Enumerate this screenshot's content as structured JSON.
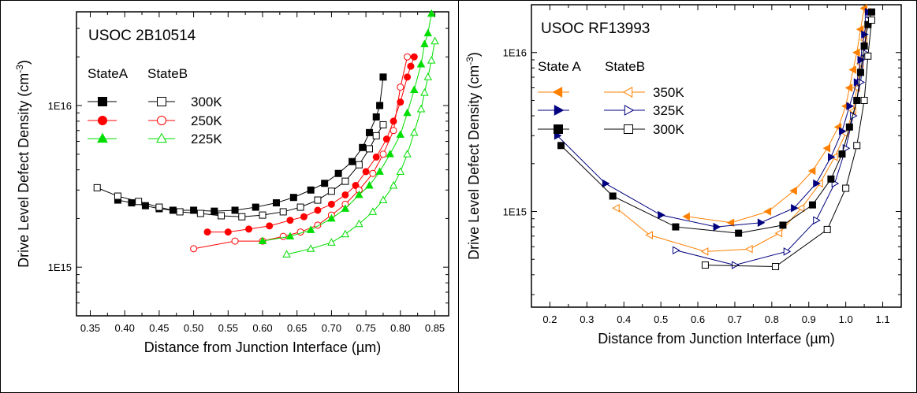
{
  "chart_data": [
    {
      "type": "scatter",
      "title": "USOC 2B10514",
      "xlabel": "Distance from Junction Interface (µm)",
      "ylabel": "Drive Level Defect Density (cm-3)",
      "ylabel_main": "Drive Level Defect Density (cm",
      "ylabel_sup": "-3",
      "ylabel_close": ")",
      "xlim": [
        0.33,
        0.87
      ],
      "ylim": [
        500000000000000,
        38000000000000000
      ],
      "yscale": "log",
      "xticks": [
        "0.35",
        "0.40",
        "0.45",
        "0.50",
        "0.55",
        "0.60",
        "0.65",
        "0.70",
        "0.75",
        "0.80",
        "0.85"
      ],
      "yticks": [
        {
          "value": 1000000000000000,
          "label": "1E15"
        },
        {
          "value": 10000000000000000,
          "label": "1E16"
        }
      ],
      "legend_headers": [
        "StateA",
        "StateB"
      ],
      "legend_rows": [
        {
          "label": "300K",
          "color": "#000000",
          "marker": "square"
        },
        {
          "label": "250K",
          "color": "#ff0000",
          "marker": "circle"
        },
        {
          "label": "225K",
          "color": "#00dd00",
          "marker": "triangle-up"
        }
      ],
      "series": [
        {
          "name": "StateA 300K",
          "color": "#000000",
          "marker": "square",
          "filled": true,
          "x": [
            0.39,
            0.41,
            0.43,
            0.45,
            0.47,
            0.5,
            0.53,
            0.56,
            0.59,
            0.62,
            0.645,
            0.67,
            0.69,
            0.71,
            0.73,
            0.745,
            0.755,
            0.765,
            0.77,
            0.775
          ],
          "y": [
            2600000000000000.0,
            2500000000000000.0,
            2400000000000000.0,
            2300000000000000.0,
            2250000000000000.0,
            2250000000000000.0,
            2220000000000000.0,
            2250000000000000.0,
            2350000000000000.0,
            2500000000000000.0,
            2700000000000000.0,
            3000000000000000.0,
            3300000000000000.0,
            3800000000000000.0,
            4500000000000000.0,
            5500000000000000.0,
            6800000000000000.0,
            8500000000000000.0,
            1e+16,
            1.5e+16
          ]
        },
        {
          "name": "StateB 300K",
          "color": "#000000",
          "marker": "square",
          "filled": false,
          "x": [
            0.36,
            0.39,
            0.42,
            0.45,
            0.48,
            0.51,
            0.54,
            0.57,
            0.6,
            0.63,
            0.655,
            0.68,
            0.7,
            0.72,
            0.74,
            0.755,
            0.765,
            0.775
          ],
          "y": [
            3100000000000000.0,
            2750000000000000.0,
            2550000000000000.0,
            2350000000000000.0,
            2200000000000000.0,
            2150000000000000.0,
            2080000000000000.0,
            2050000000000000.0,
            2100000000000000.0,
            2200000000000000.0,
            2350000000000000.0,
            2600000000000000.0,
            2950000000000000.0,
            3400000000000000.0,
            4300000000000000.0,
            5400000000000000.0,
            6500000000000000.0,
            7600000000000000.0
          ]
        },
        {
          "name": "StateA 250K",
          "color": "#ff0000",
          "marker": "circle",
          "filled": true,
          "x": [
            0.52,
            0.55,
            0.58,
            0.61,
            0.64,
            0.66,
            0.68,
            0.7,
            0.72,
            0.735,
            0.75,
            0.765,
            0.78,
            0.79,
            0.8,
            0.81,
            0.815,
            0.82
          ],
          "y": [
            1650000000000000.0,
            1650000000000000.0,
            1720000000000000.0,
            1800000000000000.0,
            1950000000000000.0,
            2050000000000000.0,
            2250000000000000.0,
            2450000000000000.0,
            2800000000000000.0,
            3200000000000000.0,
            3900000000000000.0,
            4800000000000000.0,
            6200000000000000.0,
            8000000000000000.0,
            1.05e+16,
            1.5e+16,
            1.75e+16,
            2e+16
          ]
        },
        {
          "name": "StateB 250K",
          "color": "#ff0000",
          "marker": "circle",
          "filled": false,
          "x": [
            0.5,
            0.56,
            0.6,
            0.63,
            0.655,
            0.68,
            0.7,
            0.72,
            0.74,
            0.76,
            0.775,
            0.79,
            0.8,
            0.81
          ],
          "y": [
            1300000000000000.0,
            1450000000000000.0,
            1450000000000000.0,
            1550000000000000.0,
            1650000000000000.0,
            1820000000000000.0,
            2100000000000000.0,
            2450000000000000.0,
            3000000000000000.0,
            3800000000000000.0,
            5000000000000000.0,
            7000000000000000.0,
            1.3e+16,
            2e+16
          ]
        },
        {
          "name": "StateA 225K",
          "color": "#00dd00",
          "marker": "triangle-up",
          "filled": true,
          "x": [
            0.6,
            0.64,
            0.67,
            0.7,
            0.72,
            0.74,
            0.755,
            0.77,
            0.785,
            0.8,
            0.81,
            0.82,
            0.83,
            0.835,
            0.84,
            0.845
          ],
          "y": [
            1450000000000000.0,
            1550000000000000.0,
            1700000000000000.0,
            2000000000000000.0,
            2300000000000000.0,
            2800000000000000.0,
            3200000000000000.0,
            3900000000000000.0,
            5000000000000000.0,
            6600000000000000.0,
            9000000000000000.0,
            1.25e+16,
            1.8e+16,
            2.4e+16,
            2.8e+16,
            3.7e+16
          ]
        },
        {
          "name": "StateB 225K",
          "color": "#00dd00",
          "marker": "triangle-up",
          "filled": false,
          "x": [
            0.635,
            0.67,
            0.7,
            0.72,
            0.74,
            0.76,
            0.775,
            0.79,
            0.8,
            0.81,
            0.82,
            0.83,
            0.835,
            0.84,
            0.845,
            0.85
          ],
          "y": [
            1200000000000000.0,
            1300000000000000.0,
            1420000000000000.0,
            1600000000000000.0,
            1850000000000000.0,
            2200000000000000.0,
            2600000000000000.0,
            3200000000000000.0,
            3900000000000000.0,
            5000000000000000.0,
            6800000000000000.0,
            9500000000000000.0,
            1.2e+16,
            1.5e+16,
            1.9e+16,
            2.5e+16
          ]
        }
      ]
    },
    {
      "type": "scatter",
      "title": "USOC RF13993",
      "xlabel": "Distance from Junction Interface (µm)",
      "ylabel": "Drive Level Defect Density (cm-3)",
      "ylabel_main": "Drive Level Defect Density (cm",
      "ylabel_sup": "-3",
      "ylabel_close": ")",
      "xlim": [
        0.15,
        1.15
      ],
      "ylim": [
        250000000000000,
        20000000000000000
      ],
      "yscale": "log",
      "xticks": [
        "0.2",
        "0.3",
        "0.4",
        "0.5",
        "0.6",
        "0.7",
        "0.8",
        "0.9",
        "1.0",
        "1.1"
      ],
      "yticks": [
        {
          "value": 1000000000000000,
          "label": "1E15"
        },
        {
          "value": 10000000000000000,
          "label": "1E16"
        }
      ],
      "legend_headers": [
        "State A",
        "StateB"
      ],
      "legend_rows": [
        {
          "label": "350K",
          "color": "#ff8000",
          "marker": "triangle-left"
        },
        {
          "label": "325K",
          "color": "#000080",
          "marker": "triangle-right"
        },
        {
          "label": "300K",
          "color": "#000000",
          "marker": "square"
        }
      ],
      "series": [
        {
          "name": "State A 350K",
          "color": "#ff8000",
          "marker": "triangle-left",
          "filled": true,
          "x": [
            0.57,
            0.69,
            0.79,
            0.86,
            0.91,
            0.95,
            0.98,
            1.0,
            1.01,
            1.02,
            1.03,
            1.04,
            1.05
          ],
          "y": [
            930000000000000.0,
            850000000000000.0,
            1000000000000000.0,
            1350000000000000.0,
            1800000000000000.0,
            2500000000000000.0,
            3400000000000000.0,
            4600000000000000.0,
            6000000000000000.0,
            7800000000000000.0,
            1e+16,
            1.4e+16,
            1.9e+16
          ]
        },
        {
          "name": "StateB 350K",
          "color": "#ff8000",
          "marker": "triangle-left",
          "filled": false,
          "x": [
            0.38,
            0.47,
            0.62,
            0.74,
            0.82,
            0.88,
            0.93,
            0.97,
            1.0,
            1.02,
            1.03,
            1.04,
            1.05,
            1.06
          ],
          "y": [
            1050000000000000.0,
            710000000000000.0,
            560000000000000.0,
            580000000000000.0,
            730000000000000.0,
            1050000000000000.0,
            1500000000000000.0,
            2200000000000000.0,
            3100000000000000.0,
            4300000000000000.0,
            6000000000000000.0,
            8500000000000000.0,
            1.2e+16,
            1.8e+16
          ]
        },
        {
          "name": "State A 325K",
          "color": "#000080",
          "marker": "triangle-right",
          "filled": true,
          "x": [
            0.22,
            0.35,
            0.5,
            0.65,
            0.77,
            0.86,
            0.92,
            0.96,
            0.99,
            1.01,
            1.03,
            1.04,
            1.05,
            1.06
          ],
          "y": [
            3000000000000000.0,
            1500000000000000.0,
            950000000000000.0,
            800000000000000.0,
            850000000000000.0,
            1050000000000000.0,
            1500000000000000.0,
            2200000000000000.0,
            3200000000000000.0,
            4600000000000000.0,
            6500000000000000.0,
            9000000000000000.0,
            1.3e+16,
            1.8e+16
          ]
        },
        {
          "name": "StateB 325K",
          "color": "#000080",
          "marker": "triangle-right",
          "filled": false,
          "x": [
            0.54,
            0.7,
            0.84,
            0.92,
            0.97,
            1.0,
            1.02,
            1.04,
            1.05,
            1.06
          ],
          "y": [
            570000000000000.0,
            460000000000000.0,
            560000000000000.0,
            880000000000000.0,
            1500000000000000.0,
            2500000000000000.0,
            4000000000000000.0,
            6500000000000000.0,
            1e+16,
            1.6e+16
          ]
        },
        {
          "name": "State A 300K",
          "color": "#000000",
          "marker": "square",
          "filled": true,
          "x": [
            0.23,
            0.37,
            0.54,
            0.71,
            0.83,
            0.91,
            0.96,
            0.99,
            1.01,
            1.03,
            1.04,
            1.05,
            1.06,
            1.07
          ],
          "y": [
            2600000000000000.0,
            1250000000000000.0,
            800000000000000.0,
            730000000000000.0,
            820000000000000.0,
            1100000000000000.0,
            1600000000000000.0,
            2300000000000000.0,
            3400000000000000.0,
            5000000000000000.0,
            7500000000000000.0,
            1.1e+16,
            1.5e+16,
            1.8e+16
          ]
        },
        {
          "name": "StateB 300K",
          "color": "#000000",
          "marker": "square",
          "filled": false,
          "x": [
            0.62,
            0.81,
            0.95,
            1.0,
            1.03,
            1.05,
            1.06,
            1.07
          ],
          "y": [
            460000000000000.0,
            450000000000000.0,
            770000000000000.0,
            1400000000000000.0,
            2600000000000000.0,
            5000000000000000.0,
            9500000000000000.0,
            1.6e+16
          ]
        }
      ]
    }
  ]
}
